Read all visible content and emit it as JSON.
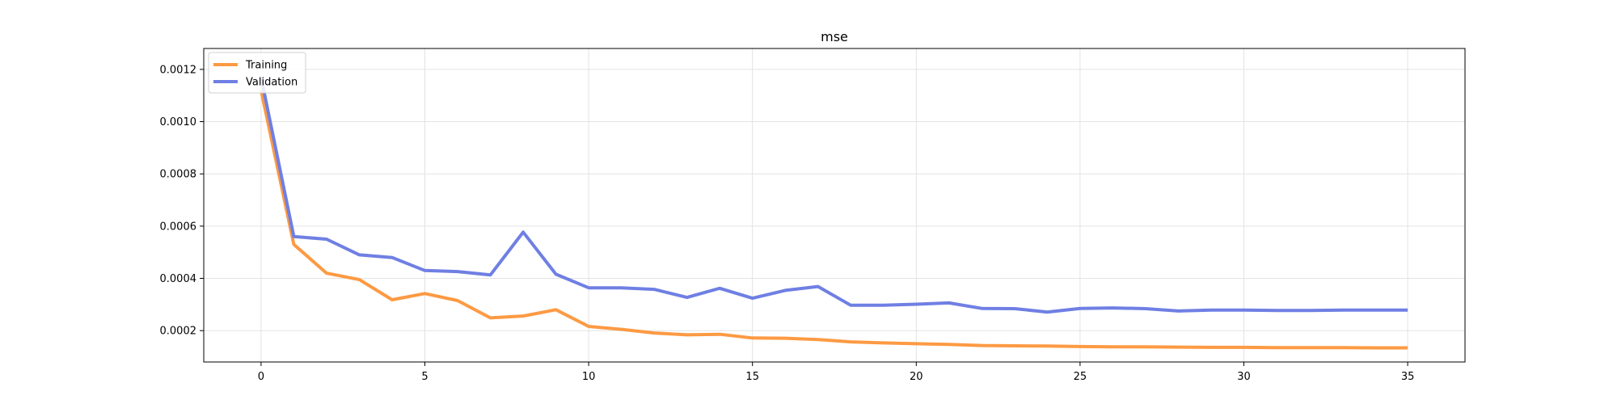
{
  "chart_data": {
    "type": "line",
    "title": "mse",
    "xlabel": "",
    "ylabel": "",
    "xlim": [
      -1.75,
      36.75
    ],
    "ylim": [
      8e-05,
      0.00128
    ],
    "xticks": [
      0,
      5,
      10,
      15,
      20,
      25,
      30,
      35
    ],
    "xtick_labels": [
      "0",
      "5",
      "10",
      "15",
      "20",
      "25",
      "30",
      "35"
    ],
    "yticks": [
      0.0002,
      0.0004,
      0.0006,
      0.0008,
      0.001,
      0.0012
    ],
    "ytick_labels": [
      "0.0002",
      "0.0004",
      "0.0006",
      "0.0008",
      "0.0010",
      "0.0012"
    ],
    "grid": true,
    "legend_position": "top-left",
    "x": [
      0,
      1,
      2,
      3,
      4,
      5,
      6,
      7,
      8,
      9,
      10,
      11,
      12,
      13,
      14,
      15,
      16,
      17,
      18,
      19,
      20,
      21,
      22,
      23,
      24,
      25,
      26,
      27,
      28,
      29,
      30,
      31,
      32,
      33,
      34,
      35
    ],
    "series": [
      {
        "name": "Training",
        "color": "#fd9a43",
        "values": [
          0.00112,
          0.00053,
          0.00042,
          0.000395,
          0.000318,
          0.000342,
          0.000315,
          0.000249,
          0.000256,
          0.00028,
          0.000216,
          0.000205,
          0.000191,
          0.000184,
          0.000186,
          0.000172,
          0.000171,
          0.000166,
          0.000157,
          0.000153,
          0.00015,
          0.000147,
          0.000143,
          0.000142,
          0.000141,
          0.000139,
          0.000138,
          0.000138,
          0.000137,
          0.000136,
          0.000136,
          0.000135,
          0.000135,
          0.000135,
          0.000134,
          0.000134
        ]
      },
      {
        "name": "Validation",
        "color": "#6f7fe3",
        "values": [
          0.00117,
          0.00056,
          0.00055,
          0.00049,
          0.00048,
          0.00043,
          0.000426,
          0.000413,
          0.000577,
          0.000416,
          0.000364,
          0.000364,
          0.000358,
          0.000327,
          0.000362,
          0.000324,
          0.000354,
          0.000369,
          0.000297,
          0.000297,
          0.000301,
          0.000306,
          0.000285,
          0.000284,
          0.000271,
          0.000285,
          0.000287,
          0.000284,
          0.000275,
          0.000279,
          0.000279,
          0.000277,
          0.000277,
          0.000279,
          0.000279,
          0.000279
        ]
      }
    ]
  }
}
